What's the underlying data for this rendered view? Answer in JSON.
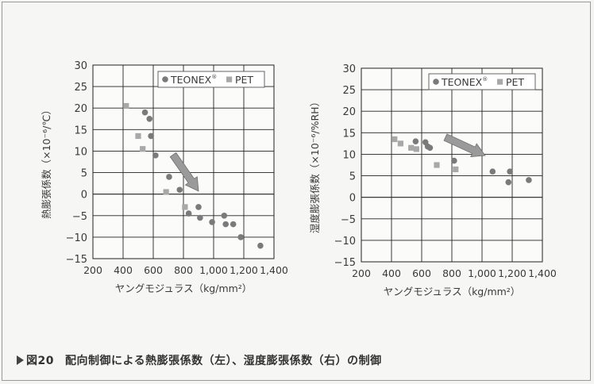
{
  "chart_data": [
    {
      "type": "scatter",
      "ylabel": "熱膨張係数（×10⁻⁶/℃）",
      "xlabel": "ヤングモジュラス（kg/mm²）",
      "xlim": [
        200,
        1400
      ],
      "ylim": [
        -15,
        30
      ],
      "xticks": [
        "200",
        "400",
        "600",
        "800",
        "1,000",
        "1,200",
        "1,400"
      ],
      "yticks": [
        "30",
        "25",
        "20",
        "15",
        "10",
        "5",
        "0",
        "−5",
        "−10",
        "−15"
      ],
      "legend": "top-right",
      "series": [
        {
          "name": "TEONEX",
          "superscript": "®",
          "marker": "circle",
          "points": [
            [
              545,
              19
            ],
            [
              575,
              17.5
            ],
            [
              585,
              13.5
            ],
            [
              615,
              9
            ],
            [
              705,
              4
            ],
            [
              775,
              1
            ],
            [
              835,
              -4.5
            ],
            [
              900,
              -3
            ],
            [
              910,
              -5.5
            ],
            [
              990,
              -6.5
            ],
            [
              1070,
              -5
            ],
            [
              1080,
              -7
            ],
            [
              1130,
              -7
            ],
            [
              1180,
              -10
            ],
            [
              1310,
              -12
            ]
          ]
        },
        {
          "name": "PET",
          "marker": "square",
          "points": [
            [
              420,
              20.5
            ],
            [
              500,
              13.5
            ],
            [
              530,
              10.5
            ],
            [
              685,
              0.5
            ],
            [
              810,
              -3
            ]
          ]
        }
      ],
      "annotations": [
        "down-right arrow"
      ]
    },
    {
      "type": "scatter",
      "ylabel": "湿度膨張係数（×10⁻⁶/%RH）",
      "xlabel": "ヤングモジュラス（kg/mm²）",
      "xlim": [
        200,
        1400
      ],
      "ylim": [
        -15,
        30
      ],
      "xticks": [
        "200",
        "400",
        "600",
        "800",
        "1,000",
        "1,200",
        "1,400"
      ],
      "yticks": [
        "30",
        "25",
        "20",
        "15",
        "10",
        "5",
        "0",
        "−5",
        "−10",
        "−15"
      ],
      "legend": "top-right",
      "series": [
        {
          "name": "TEONEX",
          "superscript": "®",
          "marker": "circle",
          "points": [
            [
              560,
              13
            ],
            [
              625,
              12.8
            ],
            [
              640,
              11.8
            ],
            [
              655,
              11.5
            ],
            [
              815,
              8.5
            ],
            [
              1070,
              6
            ],
            [
              1175,
              3.5
            ],
            [
              1185,
              6
            ],
            [
              1310,
              4
            ]
          ]
        },
        {
          "name": "PET",
          "marker": "square",
          "points": [
            [
              420,
              13.5
            ],
            [
              460,
              12.5
            ],
            [
              530,
              11.5
            ],
            [
              565,
              11.2
            ],
            [
              700,
              7.5
            ],
            [
              825,
              6.5
            ]
          ]
        }
      ],
      "annotations": [
        "down-right arrow"
      ]
    }
  ],
  "caption": {
    "label": "図20",
    "text": "配向制御による熱膨張係数（左）、湿度膨張係数（右）の制御"
  },
  "colors": {
    "teonex": "#7a7a7a",
    "pet": "#a8a8a8",
    "arrow": "#9a9a9a",
    "grid": "#222222"
  }
}
